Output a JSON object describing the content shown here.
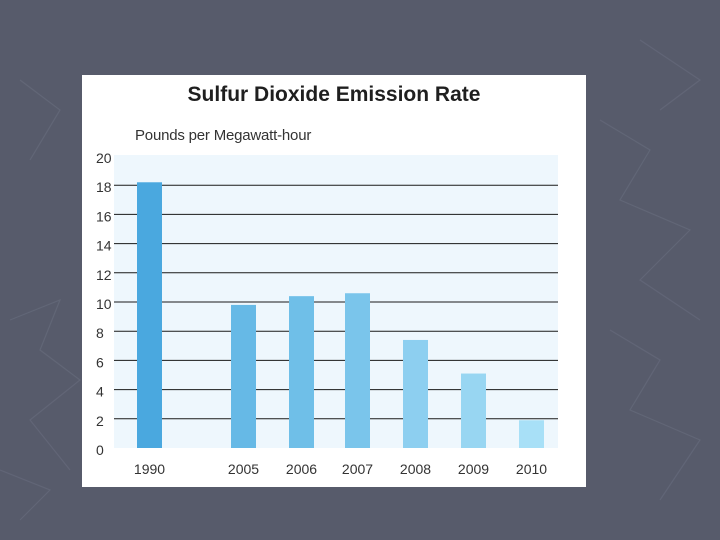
{
  "chart_data": {
    "type": "bar",
    "title": "Sulfur Dioxide Emission Rate",
    "ylabel": "Pounds per Megawatt-hour",
    "xlabel": "",
    "categories": [
      "1990",
      "2005",
      "2006",
      "2007",
      "2008",
      "2009",
      "2010"
    ],
    "values": [
      18.2,
      9.8,
      10.4,
      10.6,
      7.4,
      5.1,
      1.9
    ],
    "ylim": [
      0,
      20
    ],
    "yticks": [
      0,
      2,
      4,
      6,
      8,
      10,
      12,
      14,
      16,
      18,
      20
    ],
    "grid": true,
    "legend": "none"
  },
  "colors": {
    "background": "#575b6b",
    "plot_background": "#eef7fd",
    "bars": [
      "#4aa8df",
      "#66b9e6",
      "#6fbfe8",
      "#7ac5eb",
      "#8dcff0",
      "#98d6f2",
      "#a8e0f7"
    ],
    "gridline": "#1a1a1a"
  }
}
